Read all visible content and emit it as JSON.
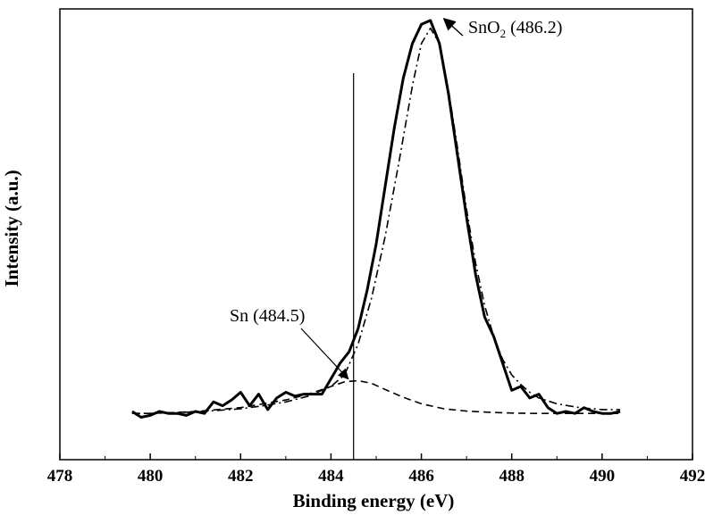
{
  "chart_data": {
    "type": "line",
    "title": "",
    "xlabel": "Binding energy (eV)",
    "ylabel": "Intensity (a.u.)",
    "xlim": [
      478,
      492
    ],
    "ylim": [
      -1.2,
      10.5
    ],
    "x_ticks": [
      478,
      480,
      482,
      484,
      486,
      488,
      490,
      492
    ],
    "x_tick_labels": [
      "478",
      "480",
      "482",
      "484",
      "486",
      "488",
      "490",
      "492"
    ],
    "y_ticks_shown": false,
    "grid": false,
    "legend": "none",
    "reference_line_x": 484.5,
    "series": [
      {
        "style": "solid-thick",
        "x": [
          479.6,
          479.8,
          480.0,
          480.2,
          480.4,
          480.6,
          480.8,
          481.0,
          481.2,
          481.4,
          481.6,
          481.8,
          482.0,
          482.2,
          482.4,
          482.6,
          482.8,
          483.0,
          483.2,
          483.4,
          483.6,
          483.8,
          484.0,
          484.2,
          484.4,
          484.6,
          484.8,
          485.0,
          485.2,
          485.4,
          485.6,
          485.8,
          486.0,
          486.2,
          486.4,
          486.6,
          486.8,
          487.0,
          487.2,
          487.4,
          487.6,
          487.8,
          488.0,
          488.2,
          488.4,
          488.6,
          488.8,
          489.0,
          489.2,
          489.4,
          489.6,
          489.8,
          490.0,
          490.2,
          490.4
        ],
        "y": [
          0.05,
          -0.1,
          -0.05,
          0.05,
          0.0,
          0.0,
          -0.05,
          0.05,
          0.0,
          0.3,
          0.2,
          0.35,
          0.55,
          0.2,
          0.5,
          0.1,
          0.4,
          0.55,
          0.45,
          0.5,
          0.5,
          0.5,
          0.9,
          1.3,
          1.6,
          2.2,
          3.2,
          4.4,
          5.9,
          7.4,
          8.7,
          9.6,
          10.1,
          10.2,
          9.6,
          8.3,
          6.7,
          5.1,
          3.6,
          2.5,
          2.0,
          1.3,
          0.6,
          0.7,
          0.4,
          0.5,
          0.15,
          0.0,
          0.05,
          0.0,
          0.15,
          0.05,
          0.0,
          0.0,
          0.05
        ]
      },
      {
        "style": "dash-dot",
        "x": [
          479.6,
          480.0,
          480.5,
          481.0,
          481.5,
          482.0,
          482.5,
          483.0,
          483.5,
          484.0,
          484.3,
          484.6,
          484.9,
          485.2,
          485.5,
          485.8,
          486.0,
          486.2,
          486.4,
          486.6,
          486.8,
          487.0,
          487.2,
          487.4,
          487.6,
          487.8,
          488.0,
          488.2,
          488.4,
          488.6,
          489.0,
          489.5,
          490.0,
          490.4
        ],
        "y": [
          0.0,
          0.0,
          0.02,
          0.04,
          0.08,
          0.12,
          0.2,
          0.3,
          0.45,
          0.7,
          1.0,
          1.8,
          3.0,
          4.6,
          6.5,
          8.5,
          9.6,
          10.0,
          9.6,
          8.4,
          6.9,
          5.3,
          3.9,
          2.8,
          2.0,
          1.4,
          1.0,
          0.75,
          0.55,
          0.4,
          0.25,
          0.15,
          0.1,
          0.1
        ]
      },
      {
        "style": "dashed",
        "x": [
          479.6,
          480.0,
          480.5,
          481.0,
          481.5,
          482.0,
          482.5,
          483.0,
          483.5,
          484.0,
          484.3,
          484.6,
          484.9,
          485.2,
          485.6,
          486.0,
          486.5,
          487.0,
          487.5,
          488.0,
          488.5,
          489.0,
          489.5,
          490.0,
          490.4
        ],
        "y": [
          0.0,
          0.0,
          0.02,
          0.05,
          0.1,
          0.15,
          0.25,
          0.35,
          0.5,
          0.7,
          0.82,
          0.85,
          0.78,
          0.62,
          0.42,
          0.25,
          0.12,
          0.06,
          0.03,
          0.01,
          0.0,
          0.0,
          0.0,
          0.0,
          0.0
        ]
      }
    ],
    "annotations": [
      {
        "id": "sno2",
        "main": "SnO",
        "subscript": "2",
        "rest": " (486.2)",
        "target_x": 486.3,
        "target_y": 10.2
      },
      {
        "id": "sn",
        "text": "Sn (484.5)",
        "target_x": 484.4,
        "target_y": 0.85
      }
    ]
  }
}
